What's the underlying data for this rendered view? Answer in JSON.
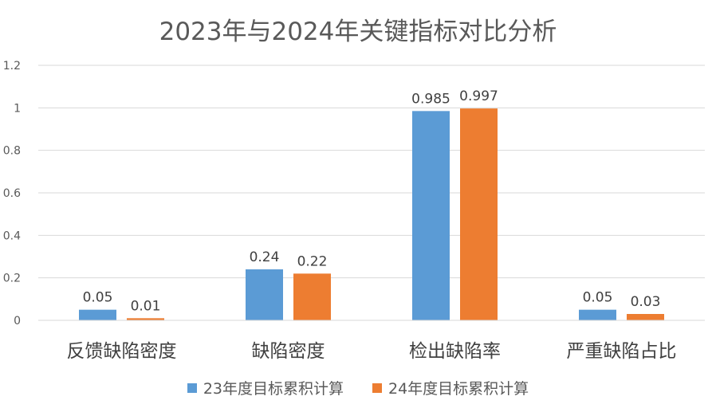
{
  "chart_data": {
    "type": "bar",
    "title": "2023年与2024年关键指标对比分析",
    "categories": [
      "反馈缺陷密度",
      "缺陷密度",
      "检出缺陷率",
      "严重缺陷占比"
    ],
    "series": [
      {
        "name": "23年度目标累积计算",
        "values": [
          0.05,
          0.24,
          0.985,
          0.05
        ],
        "labels": [
          "0.05",
          "0.24",
          "0.985",
          "0.05"
        ],
        "color": "#5b9bd5"
      },
      {
        "name": "24年度目标累积计算",
        "values": [
          0.01,
          0.22,
          0.997,
          0.03
        ],
        "labels": [
          "0.01",
          "0.22",
          "0.997",
          "0.03"
        ],
        "color": "#ed7d31"
      }
    ],
    "yticks": [
      "0",
      "0.2",
      "0.4",
      "0.6",
      "0.8",
      "1",
      "1.2"
    ],
    "ylim": [
      0,
      1.2
    ],
    "grid": true,
    "legend_position": "bottom"
  }
}
